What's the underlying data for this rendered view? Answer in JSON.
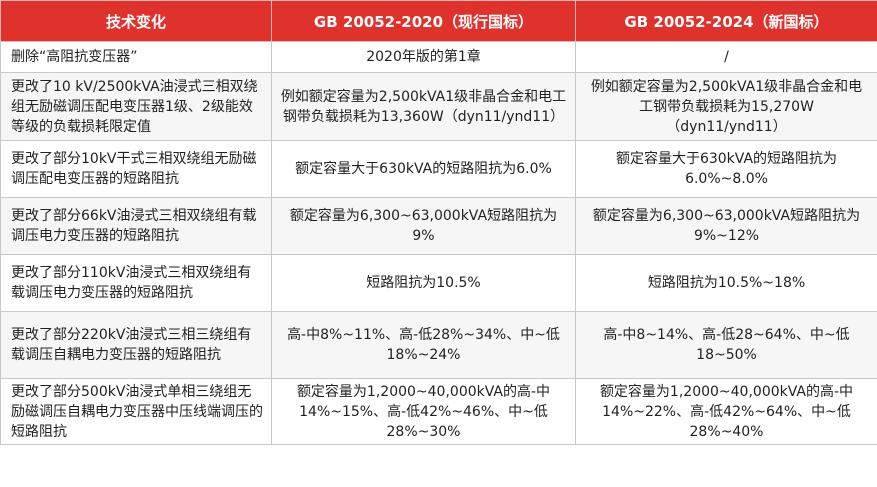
{
  "header": {
    "col1": "技术变化",
    "col2": "GB 20052-2020（现行国标）",
    "col3": "GB 20052-2024（新国标）"
  },
  "rows": [
    {
      "change": "删除“高阻抗变压器”",
      "gb2020": "2020年版的第1章",
      "gb2024": "/"
    },
    {
      "change": "更改了10 kV/2500kVA油浸式三相双绕组无励磁调压配电变压器1级、2级能效等级的负载损耗限定值",
      "gb2020": "例如额定容量为2,500kVA1级非晶合金和电工钢带负载损耗为13,360W（dyn11/ynd11）",
      "gb2024": "例如额定容量为2,500kVA1级非晶合金和电工钢带负载损耗为15,270W（dyn11/ynd11）"
    },
    {
      "change": "更改了部分10kV干式三相双绕组无励磁调压配电变压器的短路阻抗",
      "gb2020": "额定容量大于630kVA的短路阻抗为6.0%",
      "gb2024": "额定容量大于630kVA的短路阻抗为6.0%~8.0%"
    },
    {
      "change": "更改了部分66kV油浸式三相双绕组有载调压电力变压器的短路阻抗",
      "gb2020": "额定容量为6,300~63,000kVA短路阻抗为9%",
      "gb2024": "额定容量为6,300~63,000kVA短路阻抗为9%~12%"
    },
    {
      "change": "更改了部分110kV油浸式三相双绕组有载调压电力变压器的短路阻抗",
      "gb2020": "短路阻抗为10.5%",
      "gb2024": "短路阻抗为10.5%~18%"
    },
    {
      "change": "更改了部分220kV油浸式三相三绕组有载调压自耦电力变压器的短路阻抗",
      "gb2020": "高-中8%~11%、高-低28%~34%、中~低18%~24%",
      "gb2024": "高-中8~14%、高-低28~64%、中~低18~50%"
    },
    {
      "change": "更改了部分500kV油浸式单相三绕组无励磁调压自耦电力变压器中压线端调压的短路阻抗",
      "gb2020": "额定容量为1,2000~40,000kVA的高-中14%~15%、高-低42%~46%、中~低28%~30%",
      "gb2024": "额定容量为1,2000~40,000kVA的高-中14%~22%、高-低42%~64%、中~低28%~40%"
    }
  ]
}
